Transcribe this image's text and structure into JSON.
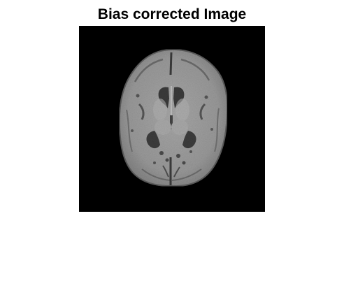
{
  "figure": {
    "title": "Bias corrected Image"
  },
  "image": {
    "kind": "axial brain MRI slice, grayscale, on black background",
    "background_color": "#000000",
    "tissue_color": "#9a9a9a",
    "csf_color": "#3a3a3a"
  }
}
